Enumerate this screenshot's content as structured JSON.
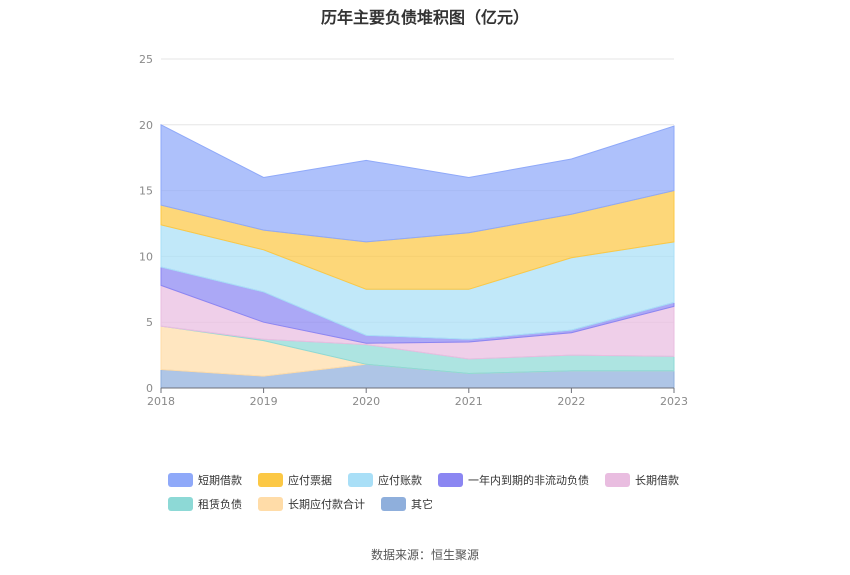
{
  "chart_data": {
    "type": "area",
    "stacked": true,
    "title": "历年主要负债堆积图（亿元）",
    "source": "数据来源：恒生聚源",
    "categories": [
      "2018",
      "2019",
      "2020",
      "2021",
      "2022",
      "2023"
    ],
    "ylim": [
      0,
      25
    ],
    "yticks": [
      0,
      5,
      10,
      15,
      20,
      25
    ],
    "grid": true,
    "legend_position": "bottom",
    "series": [
      {
        "name": "其它",
        "color": "#8fafdc",
        "values": [
          1.4,
          0.9,
          1.8,
          1.1,
          1.3,
          1.3
        ]
      },
      {
        "name": "长期应付款合计",
        "color": "#ffdca8",
        "values": [
          3.3,
          2.7,
          0.0,
          0.0,
          0.0,
          0.0
        ]
      },
      {
        "name": "租赁负债",
        "color": "#8dd9d6",
        "values": [
          0.0,
          0.1,
          1.5,
          1.1,
          1.2,
          1.1
        ]
      },
      {
        "name": "长期借款",
        "color": "#e9bde0",
        "values": [
          3.1,
          1.3,
          0.1,
          1.3,
          1.7,
          3.8
        ]
      },
      {
        "name": "一年内到期的非流动负债",
        "color": "#8b86f2",
        "values": [
          1.4,
          2.3,
          0.6,
          0.2,
          0.2,
          0.3
        ]
      },
      {
        "name": "应付账款",
        "color": "#a9dff7",
        "values": [
          3.2,
          3.2,
          3.5,
          3.8,
          5.5,
          4.6
        ]
      },
      {
        "name": "应付票据",
        "color": "#fcc845",
        "values": [
          1.5,
          1.5,
          3.6,
          4.3,
          3.3,
          3.9
        ]
      },
      {
        "name": "短期借款",
        "color": "#8fa9f9",
        "values": [
          6.1,
          4.0,
          6.2,
          4.2,
          4.2,
          4.9
        ]
      }
    ]
  },
  "legend_order": [
    "短期借款",
    "应付票据",
    "应付账款",
    "一年内到期的非流动负债",
    "长期借款",
    "租赁负债",
    "长期应付款合计",
    "其它"
  ]
}
